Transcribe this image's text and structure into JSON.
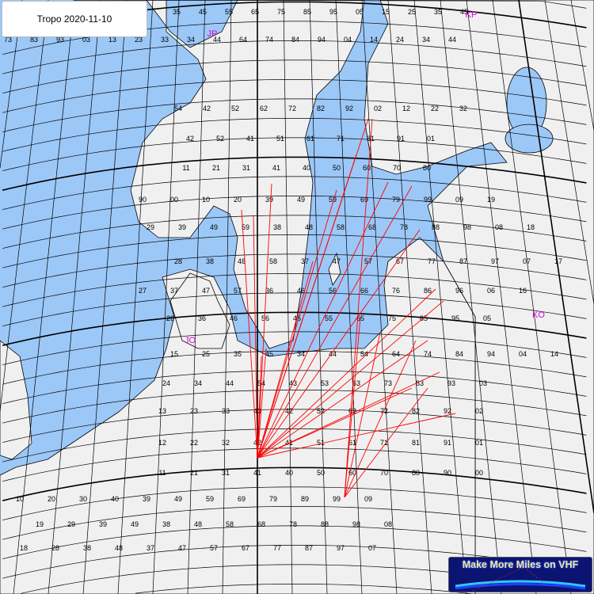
{
  "title": "Tropo 2020-11-10",
  "logo_text": "Make More Miles on VHF",
  "colors": {
    "sea": "#9cc8f8",
    "land": "#f0f0f0",
    "grid": "#000000",
    "path": "#ff0000",
    "field_label": "#e000e0"
  },
  "field_labels": [
    "JP",
    "KP",
    "JO",
    "KO"
  ],
  "grid_labels": [
    "35",
    "45",
    "55",
    "65",
    "75",
    "85",
    "95",
    "05",
    "15",
    "25",
    "35",
    "45",
    "73",
    "83",
    "93",
    "03",
    "13",
    "23",
    "33",
    "34",
    "44",
    "64",
    "74",
    "84",
    "94",
    "04",
    "14",
    "24",
    "34",
    "44",
    "54",
    "42",
    "52",
    "62",
    "72",
    "82",
    "92",
    "02",
    "12",
    "22",
    "32",
    "42",
    "52",
    "41",
    "51",
    "61",
    "71",
    "81",
    "91",
    "01",
    "11",
    "21",
    "31",
    "41",
    "40",
    "50",
    "60",
    "70",
    "80",
    "90",
    "00",
    "10",
    "20",
    "39",
    "49",
    "59",
    "69",
    "79",
    "99",
    "09",
    "19",
    "29",
    "39",
    "49",
    "59",
    "38",
    "48",
    "58",
    "68",
    "78",
    "88",
    "98",
    "08",
    "18",
    "28",
    "38",
    "48",
    "58",
    "37",
    "47",
    "57",
    "67",
    "77",
    "87",
    "97",
    "07",
    "17",
    "27",
    "37",
    "47",
    "57",
    "36",
    "46",
    "56",
    "66",
    "76",
    "86",
    "96",
    "06",
    "16",
    "26",
    "36",
    "46",
    "56",
    "45",
    "55",
    "65",
    "75",
    "85",
    "95",
    "05",
    "15",
    "25",
    "35",
    "45",
    "34",
    "44",
    "54",
    "64",
    "74",
    "84",
    "94",
    "04",
    "14",
    "24",
    "34",
    "44",
    "54",
    "43",
    "53",
    "63",
    "73",
    "83",
    "93",
    "03",
    "13",
    "23",
    "33",
    "43",
    "42",
    "52",
    "62",
    "72",
    "82",
    "92",
    "02",
    "12",
    "22",
    "32",
    "42",
    "41",
    "51",
    "61",
    "71",
    "81",
    "91",
    "01",
    "11",
    "21",
    "31",
    "41",
    "40",
    "50",
    "60",
    "70",
    "80",
    "90",
    "00",
    "10",
    "20",
    "30",
    "40",
    "39",
    "49",
    "59",
    "69",
    "79",
    "89",
    "99",
    "09",
    "19",
    "29",
    "39",
    "49",
    "38",
    "48",
    "58",
    "68",
    "78",
    "88",
    "98",
    "08",
    "18",
    "28",
    "38",
    "48",
    "37",
    "47",
    "57",
    "67",
    "77",
    "87",
    "97",
    "07",
    "17",
    "27",
    "37",
    "47"
  ]
}
